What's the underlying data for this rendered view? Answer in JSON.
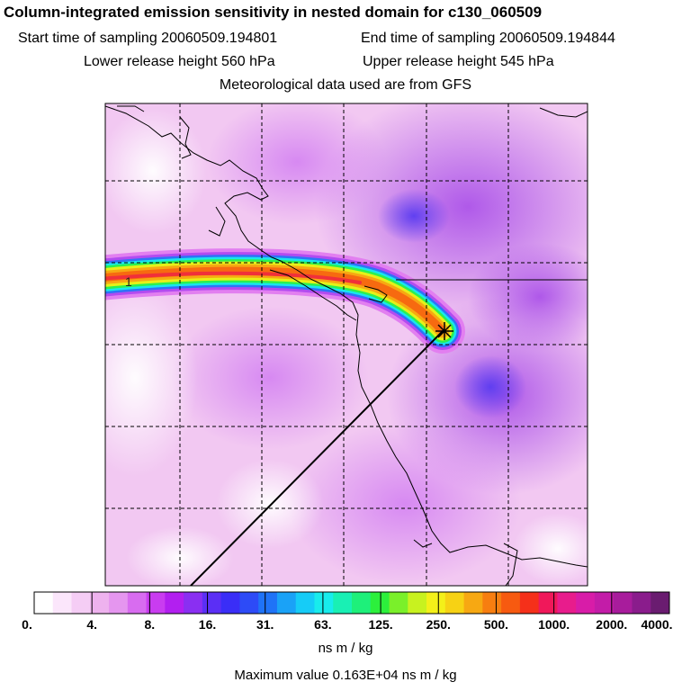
{
  "header": {
    "title": "Column-integrated emission sensitivity in nested domain for c130_060509",
    "start_label": "Start time of sampling 20060509.194801",
    "end_label": "End time of sampling 20060509.194844",
    "lower_label": "Lower release height  560 hPa",
    "upper_label": "Upper release height  545 hPa",
    "met_label": "Meteorological data used are from GFS"
  },
  "chart_data": {
    "type": "heatmap",
    "title": "Column-integrated emission sensitivity in nested domain for c130_060509",
    "plume_marker_label": "1",
    "release_point": "star marker at release location",
    "colorbar": {
      "tick_labels": [
        "0.",
        "4.",
        "8.",
        "16.",
        "31.",
        "63.",
        "125.",
        "250.",
        "500.",
        "1000.",
        "2000.",
        "4000."
      ],
      "units": "ns m / kg",
      "colors": [
        "#ffffff",
        "#fbe6fb",
        "#f5cdf5",
        "#eeb2ee",
        "#e596ef",
        "#d86cf0",
        "#c93cf0",
        "#b21ff0",
        "#8a2ff2",
        "#5b2ff5",
        "#3a2ef7",
        "#2d4bf7",
        "#1f73f7",
        "#1aa2f7",
        "#16ccf7",
        "#18ecec",
        "#19f0b4",
        "#1ef07a",
        "#2cf03c",
        "#7af02a",
        "#c8f21f",
        "#f4f019",
        "#f7d214",
        "#f7a812",
        "#f77e10",
        "#f75a10",
        "#f5301a",
        "#f0185a",
        "#e81c8c",
        "#d81ca8",
        "#c31ca8",
        "#a81c9c",
        "#8a1c8c",
        "#6a1c70"
      ]
    },
    "max_value_text": "Maximum value  0.163E+04 ns m / kg"
  }
}
